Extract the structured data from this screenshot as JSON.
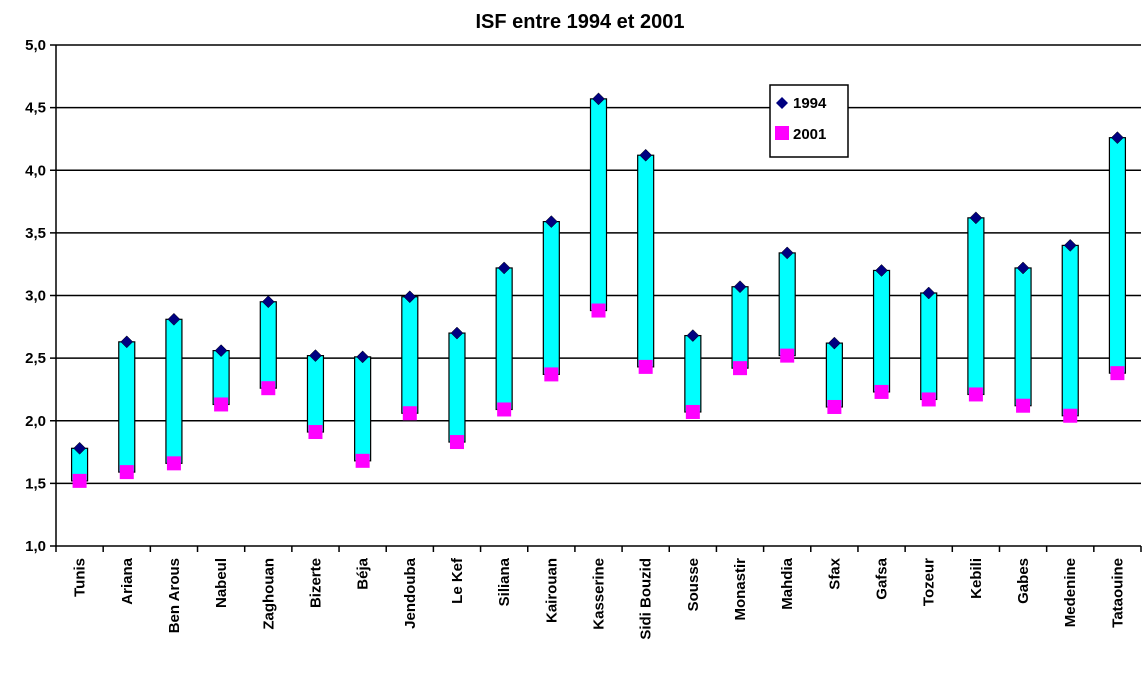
{
  "chart_data": {
    "type": "bar",
    "subtype": "floating-range",
    "title": "ISF entre 1994 et 2001",
    "xlabel": "",
    "ylabel": "",
    "ylim": [
      1.0,
      5.0
    ],
    "yticks": [
      "1,0",
      "1,5",
      "2,0",
      "2,5",
      "3,0",
      "3,5",
      "4,0",
      "4,5",
      "5,0"
    ],
    "grid": true,
    "legend_position": "top-right",
    "categories": [
      "Tunis",
      "Ariana",
      "Ben Arous",
      "Nabeul",
      "Zaghouan",
      "Bizerte",
      "Béja",
      "Jendouba",
      "Le Kef",
      "Siliana",
      "Kairouan",
      "Kasserine",
      "Sidi Bouzid",
      "Sousse",
      "Monastir",
      "Mahdia",
      "Sfax",
      "Gafsa",
      "Tozeur",
      "Kebili",
      "Gabes",
      "Medenine",
      "Tataouine"
    ],
    "series": [
      {
        "name": "1994",
        "color": "#000080",
        "marker": "diamond",
        "values": [
          1.78,
          2.63,
          2.81,
          2.56,
          2.95,
          2.52,
          2.51,
          2.99,
          2.7,
          3.22,
          3.59,
          4.57,
          4.12,
          2.68,
          3.07,
          3.34,
          2.62,
          3.2,
          3.02,
          3.62,
          3.22,
          3.4,
          4.26
        ]
      },
      {
        "name": "2001",
        "color": "#ff00ff",
        "marker": "square",
        "values": [
          1.52,
          1.59,
          1.66,
          2.13,
          2.26,
          1.91,
          1.68,
          2.06,
          1.83,
          2.09,
          2.37,
          2.88,
          2.43,
          2.07,
          2.42,
          2.52,
          2.11,
          2.23,
          2.17,
          2.21,
          2.12,
          2.04,
          2.38
        ]
      }
    ],
    "range_bar_color": "#00ffff"
  }
}
